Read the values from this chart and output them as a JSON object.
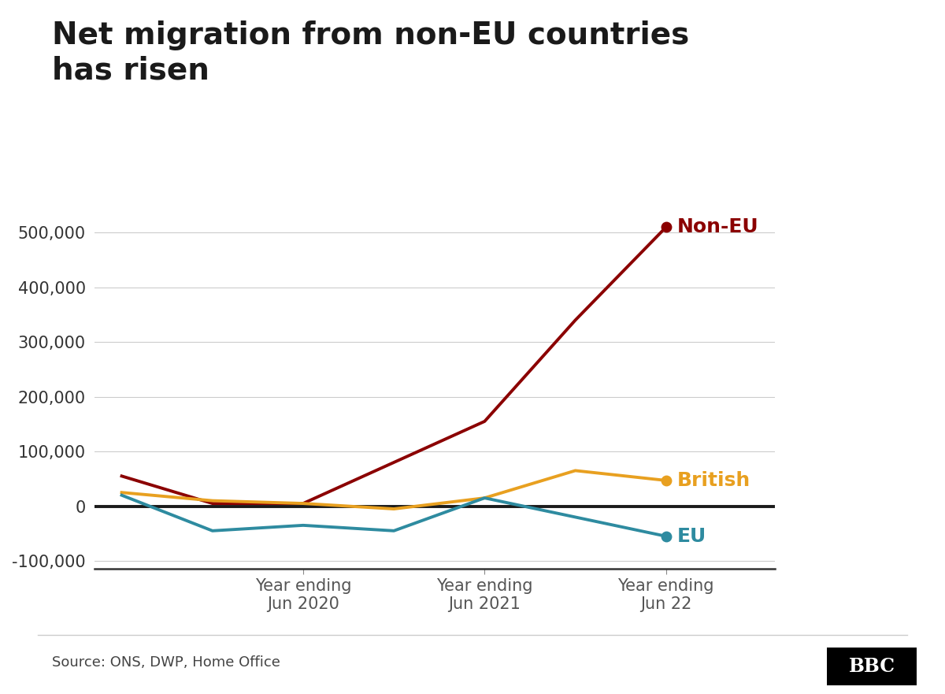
{
  "title": "Net migration from non-EU countries\nhas risen",
  "title_fontsize": 28,
  "source_text": "Source: ONS, DWP, Home Office",
  "x_tick_positions": [
    0,
    1,
    2,
    3,
    4,
    5,
    6
  ],
  "x_tick_labels_display": [
    "Year ending\nJun 2020",
    "Year ending\nJun 2021",
    "Year ending\nJun 22"
  ],
  "x_tick_positions_display": [
    2,
    4,
    6
  ],
  "non_eu": [
    55000,
    5000,
    5000,
    80000,
    155000,
    340000,
    510000
  ],
  "british": [
    25000,
    10000,
    5000,
    -5000,
    15000,
    65000,
    47000
  ],
  "eu": [
    20000,
    -45000,
    -35000,
    -45000,
    15000,
    -20000,
    -55000
  ],
  "non_eu_color": "#8b0000",
  "british_color": "#e8a020",
  "eu_color": "#2e8ba0",
  "zero_line_color": "#1a1a1a",
  "background_color": "#ffffff",
  "ylim": [
    -115000,
    570000
  ],
  "yticks": [
    -100000,
    0,
    100000,
    200000,
    300000,
    400000,
    500000
  ],
  "grid_color": "#cccccc",
  "label_non_eu": "Non-EU",
  "label_british": "British",
  "label_eu": "EU"
}
